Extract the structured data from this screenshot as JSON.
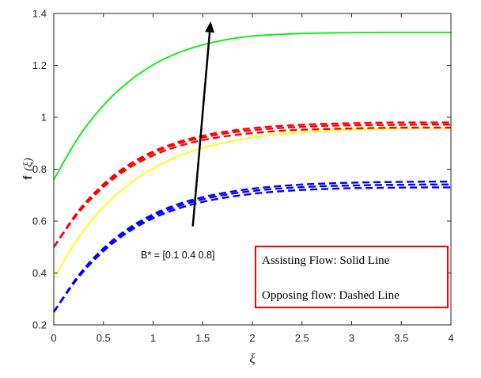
{
  "chart_data": {
    "type": "line",
    "xlabel": "ξ",
    "ylabel": "f ′(ξ)",
    "ylabel_main": "f",
    "ylabel_arg": "(ξ)",
    "xlim": [
      0,
      4
    ],
    "ylim": [
      0.2,
      1.4
    ],
    "xticks": [
      "0",
      "0.5",
      "1",
      "1.5",
      "2",
      "2.5",
      "3",
      "3.5",
      "4"
    ],
    "yticks": [
      "0.2",
      "0.4",
      "0.6",
      "0.8",
      "1",
      "1.2",
      "1.4"
    ],
    "grid": false,
    "x": [
      0,
      0.25,
      0.5,
      0.75,
      1,
      1.25,
      1.5,
      1.75,
      2,
      2.25,
      2.5,
      2.75,
      3,
      3.25,
      3.5,
      3.75,
      4
    ],
    "series": [
      {
        "group": "assisting",
        "color": "#00ee00",
        "style": "solid",
        "values": [
          0.76,
          0.924,
          1.046,
          1.136,
          1.202,
          1.248,
          1.279,
          1.3,
          1.313,
          1.319,
          1.323,
          1.325,
          1.326,
          1.327,
          1.327,
          1.327,
          1.327
        ]
      },
      {
        "group": "assisting",
        "color": "#ffff00",
        "style": "solid",
        "values": [
          0.38,
          0.537,
          0.654,
          0.74,
          0.803,
          0.849,
          0.882,
          0.905,
          0.922,
          0.934,
          0.942,
          0.948,
          0.952,
          0.955,
          0.957,
          0.958,
          0.958
        ]
      },
      {
        "group": "opposing",
        "color": "#ff0000",
        "style": "dashed",
        "values": [
          0.5,
          0.637,
          0.738,
          0.811,
          0.862,
          0.898,
          0.922,
          0.939,
          0.95,
          0.958,
          0.963,
          0.967,
          0.969,
          0.97,
          0.971,
          0.972,
          0.972
        ]
      },
      {
        "group": "opposing",
        "color": "#ff0000",
        "style": "dashed",
        "values": [
          0.5,
          0.64,
          0.742,
          0.816,
          0.868,
          0.904,
          0.929,
          0.946,
          0.958,
          0.966,
          0.971,
          0.975,
          0.977,
          0.979,
          0.98,
          0.98,
          0.98
        ]
      },
      {
        "group": "opposing",
        "color": "#ff0000",
        "style": "dashed",
        "values": [
          0.5,
          0.633,
          0.731,
          0.803,
          0.853,
          0.888,
          0.912,
          0.928,
          0.939,
          0.947,
          0.952,
          0.955,
          0.957,
          0.959,
          0.96,
          0.96,
          0.96
        ]
      },
      {
        "group": "opposing",
        "color": "#0000ff",
        "style": "dashed",
        "values": [
          0.25,
          0.388,
          0.49,
          0.565,
          0.619,
          0.657,
          0.684,
          0.703,
          0.716,
          0.725,
          0.731,
          0.735,
          0.737,
          0.739,
          0.74,
          0.741,
          0.741
        ]
      },
      {
        "group": "opposing",
        "color": "#0000ff",
        "style": "dashed",
        "values": [
          0.25,
          0.391,
          0.495,
          0.571,
          0.626,
          0.665,
          0.692,
          0.711,
          0.725,
          0.734,
          0.741,
          0.745,
          0.748,
          0.75,
          0.751,
          0.752,
          0.752
        ]
      },
      {
        "group": "opposing",
        "color": "#0000ff",
        "style": "dashed",
        "values": [
          0.25,
          0.384,
          0.484,
          0.558,
          0.611,
          0.648,
          0.674,
          0.692,
          0.705,
          0.714,
          0.72,
          0.724,
          0.727,
          0.728,
          0.729,
          0.73,
          0.73
        ]
      }
    ],
    "annotation": {
      "text": "B* = [0.1  0.4  0.8]",
      "arrow_from": [
        1.4,
        0.58
      ],
      "arrow_to": [
        1.58,
        1.37
      ]
    },
    "legend": {
      "placement": "bottom-right",
      "border_color": "#ff0000",
      "lines": [
        "Assisting Flow:  Solid Line",
        "Opposing flow: Dashed Line"
      ]
    }
  }
}
